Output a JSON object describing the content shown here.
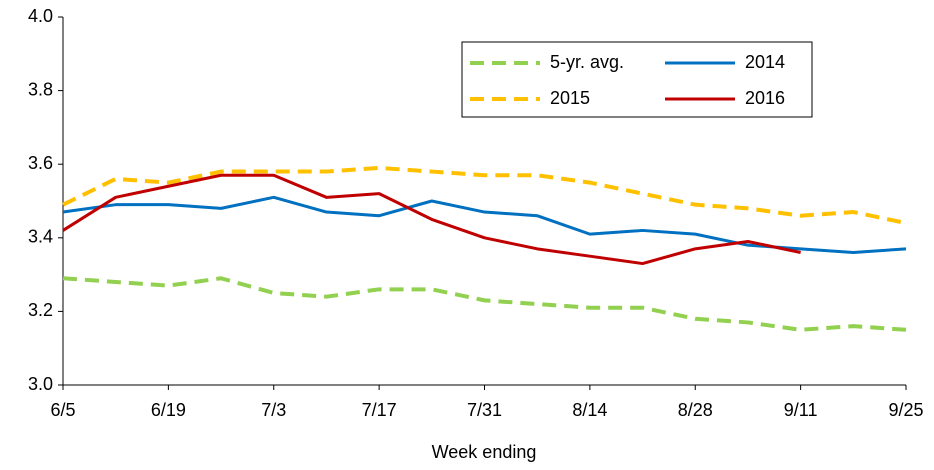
{
  "chart_data": {
    "type": "line",
    "x_label": "Week ending",
    "categories": [
      "6/5",
      null,
      "6/19",
      null,
      "7/3",
      null,
      "7/17",
      null,
      "7/31",
      null,
      "8/14",
      null,
      "8/28",
      null,
      "9/11",
      null,
      "9/25"
    ],
    "series": [
      {
        "name": "5-yr. avg.",
        "color": "#92d050",
        "dashed": true,
        "values": [
          3.29,
          3.28,
          3.27,
          3.29,
          3.25,
          3.24,
          3.26,
          3.26,
          3.23,
          3.22,
          3.21,
          3.21,
          3.18,
          3.17,
          3.15,
          3.16,
          3.15
        ]
      },
      {
        "name": "2014",
        "color": "#0070c0",
        "dashed": false,
        "values": [
          3.47,
          3.49,
          3.49,
          3.48,
          3.51,
          3.47,
          3.46,
          3.5,
          3.47,
          3.46,
          3.41,
          3.42,
          3.41,
          3.38,
          3.37,
          3.36,
          3.37
        ]
      },
      {
        "name": "2015",
        "color": "#ffc000",
        "dashed": true,
        "values": [
          3.49,
          3.56,
          3.55,
          3.58,
          3.58,
          3.58,
          3.59,
          3.58,
          3.57,
          3.57,
          3.55,
          3.52,
          3.49,
          3.48,
          3.46,
          3.47,
          3.44
        ]
      },
      {
        "name": "2016",
        "color": "#c00000",
        "dashed": false,
        "values": [
          3.42,
          3.51,
          3.54,
          3.57,
          3.57,
          3.51,
          3.52,
          3.45,
          3.4,
          3.37,
          3.35,
          3.33,
          3.37,
          3.39,
          3.36,
          null,
          null
        ]
      }
    ],
    "ylim": [
      3.0,
      4.0
    ],
    "yticks": [
      {
        "value": 3.0,
        "label": "3.0"
      },
      3.2,
      3.4,
      3.6,
      3.8,
      {
        "value": 4.0,
        "label": "4.0"
      }
    ],
    "grid": false
  }
}
